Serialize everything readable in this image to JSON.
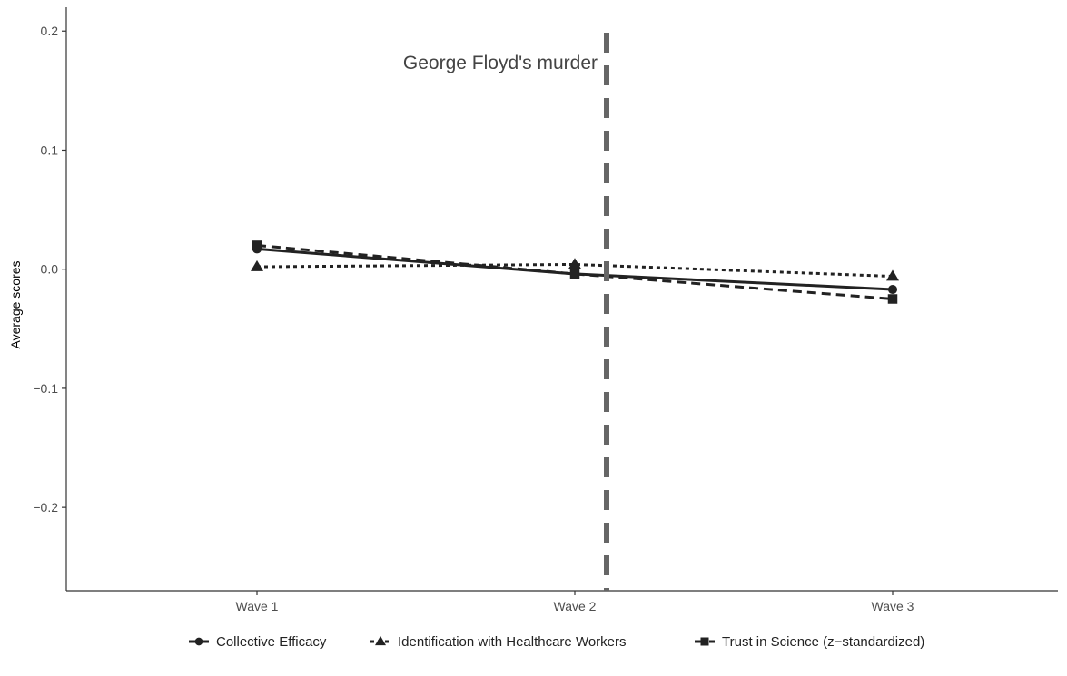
{
  "chart_data": {
    "type": "line",
    "categories": [
      "Wave 1",
      "Wave 2",
      "Wave 3"
    ],
    "ylabel": "Average scores",
    "xlabel": "",
    "title": "",
    "ylim": [
      -0.27,
      0.22
    ],
    "yticks": [
      -0.2,
      -0.1,
      0.0,
      0.1,
      0.2
    ],
    "ytick_labels": [
      "−0.2",
      "−0.1",
      "0.0",
      "0.1",
      "0.2"
    ],
    "grid": false,
    "legend_position": "bottom",
    "series": [
      {
        "name": "Collective Efficacy",
        "marker": "circle",
        "linestyle": "solid",
        "values": [
          0.017,
          -0.004,
          -0.017
        ]
      },
      {
        "name": "Identification with Healthcare Workers",
        "marker": "triangle",
        "linestyle": "dotted",
        "values": [
          0.002,
          0.004,
          -0.006
        ]
      },
      {
        "name": "Trust in Science (z−standardized)",
        "marker": "square",
        "linestyle": "dashed",
        "values": [
          0.02,
          -0.004,
          -0.025
        ]
      }
    ],
    "annotations": [
      {
        "type": "vline",
        "x": 2.1,
        "linestyle": "dashed",
        "color": "#666666",
        "label": "George Floyd's murder"
      }
    ]
  }
}
